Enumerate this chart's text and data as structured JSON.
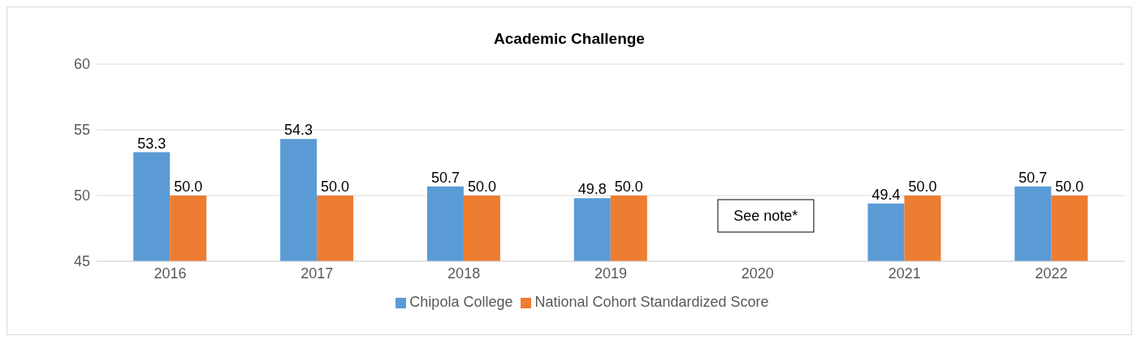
{
  "chart_data": {
    "type": "bar",
    "title": "Academic Challenge",
    "categories": [
      "2016",
      "2017",
      "2018",
      "2019",
      "2020",
      "2021",
      "2022"
    ],
    "series": [
      {
        "name": "Chipola College",
        "color": "#5b9bd5",
        "values": [
          53.3,
          54.3,
          50.7,
          49.8,
          null,
          49.4,
          50.7
        ],
        "value_labels": [
          "53.3",
          "54.3",
          "50.7",
          "49.8",
          null,
          "49.4",
          "50.7"
        ]
      },
      {
        "name": "National Cohort Standardized Score",
        "color": "#ed7d31",
        "values": [
          50.0,
          50.0,
          50.0,
          50.0,
          null,
          50.0,
          50.0
        ],
        "value_labels": [
          "50.0",
          "50.0",
          "50.0",
          "50.0",
          null,
          "50.0",
          "50.0"
        ]
      }
    ],
    "ylim": [
      45,
      60
    ],
    "yticks": [
      45,
      50,
      55,
      60
    ],
    "grid": "y",
    "legend": "bottom",
    "annotations": [
      "See note*"
    ]
  }
}
